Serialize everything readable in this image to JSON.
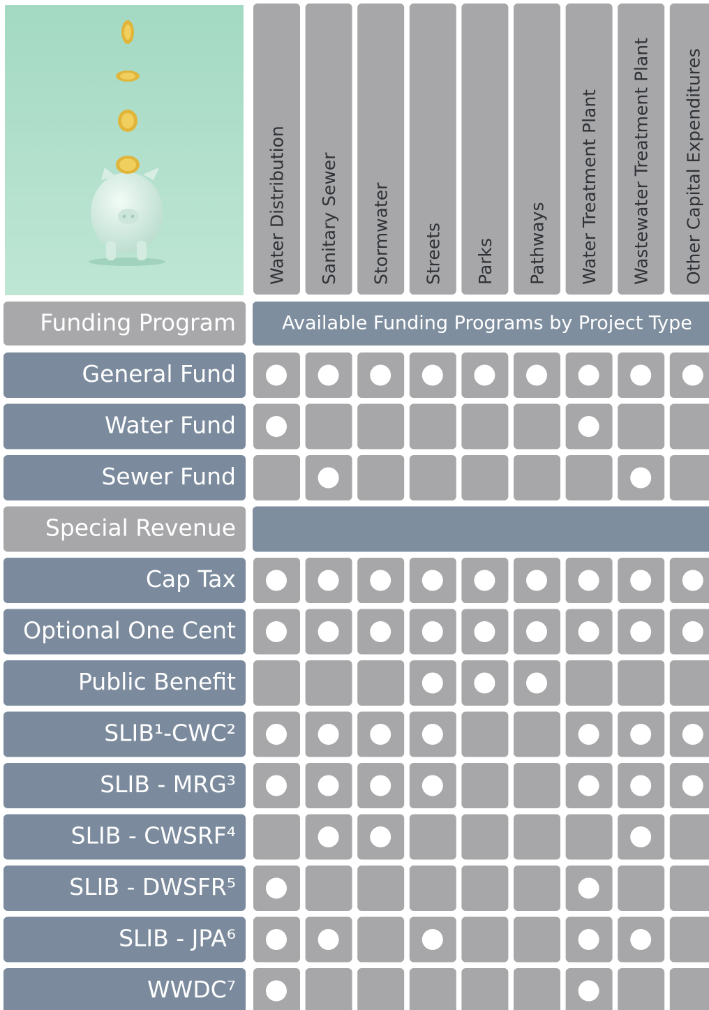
{
  "header": {
    "row_label": "Funding Program",
    "banner": "Available Funding Programs by Project Type"
  },
  "columns": [
    "Water Distribution",
    "Sanitary Sewer",
    "Stormwater",
    "Streets",
    "Parks",
    "Pathways",
    "Water Treatment Plant",
    "Wastewater Treatment Plant",
    "Other Capital Expenditures"
  ],
  "rows": [
    {
      "label": "General Fund",
      "available": [
        true,
        true,
        true,
        true,
        true,
        true,
        true,
        true,
        true
      ]
    },
    {
      "label": "Water Fund",
      "available": [
        true,
        false,
        false,
        false,
        false,
        false,
        true,
        false,
        false
      ]
    },
    {
      "label": "Sewer Fund",
      "available": [
        false,
        true,
        false,
        false,
        false,
        false,
        false,
        true,
        false
      ]
    },
    {
      "label": "Special Revenue",
      "section": true
    },
    {
      "label": "Cap Tax",
      "available": [
        true,
        true,
        true,
        true,
        true,
        true,
        true,
        true,
        true
      ]
    },
    {
      "label": "Optional One Cent",
      "available": [
        true,
        true,
        true,
        true,
        true,
        true,
        true,
        true,
        true
      ]
    },
    {
      "label": "Public Benefit",
      "available": [
        false,
        false,
        false,
        true,
        true,
        true,
        false,
        false,
        false
      ]
    },
    {
      "label": "SLIB¹-CWC²",
      "available": [
        true,
        true,
        true,
        true,
        false,
        false,
        true,
        true,
        true
      ]
    },
    {
      "label": "SLIB - MRG³",
      "available": [
        true,
        true,
        true,
        true,
        false,
        false,
        true,
        true,
        true
      ]
    },
    {
      "label": "SLIB - CWSRF⁴",
      "available": [
        false,
        true,
        true,
        false,
        false,
        false,
        false,
        true,
        false
      ]
    },
    {
      "label": "SLIB - DWSFR⁵",
      "available": [
        true,
        false,
        false,
        false,
        false,
        false,
        true,
        false,
        false
      ]
    },
    {
      "label": "SLIB - JPA⁶",
      "available": [
        true,
        true,
        false,
        true,
        false,
        false,
        true,
        true,
        false
      ]
    },
    {
      "label": "WWDC⁷",
      "available": [
        true,
        false,
        false,
        false,
        false,
        false,
        true,
        false,
        false
      ]
    }
  ]
}
